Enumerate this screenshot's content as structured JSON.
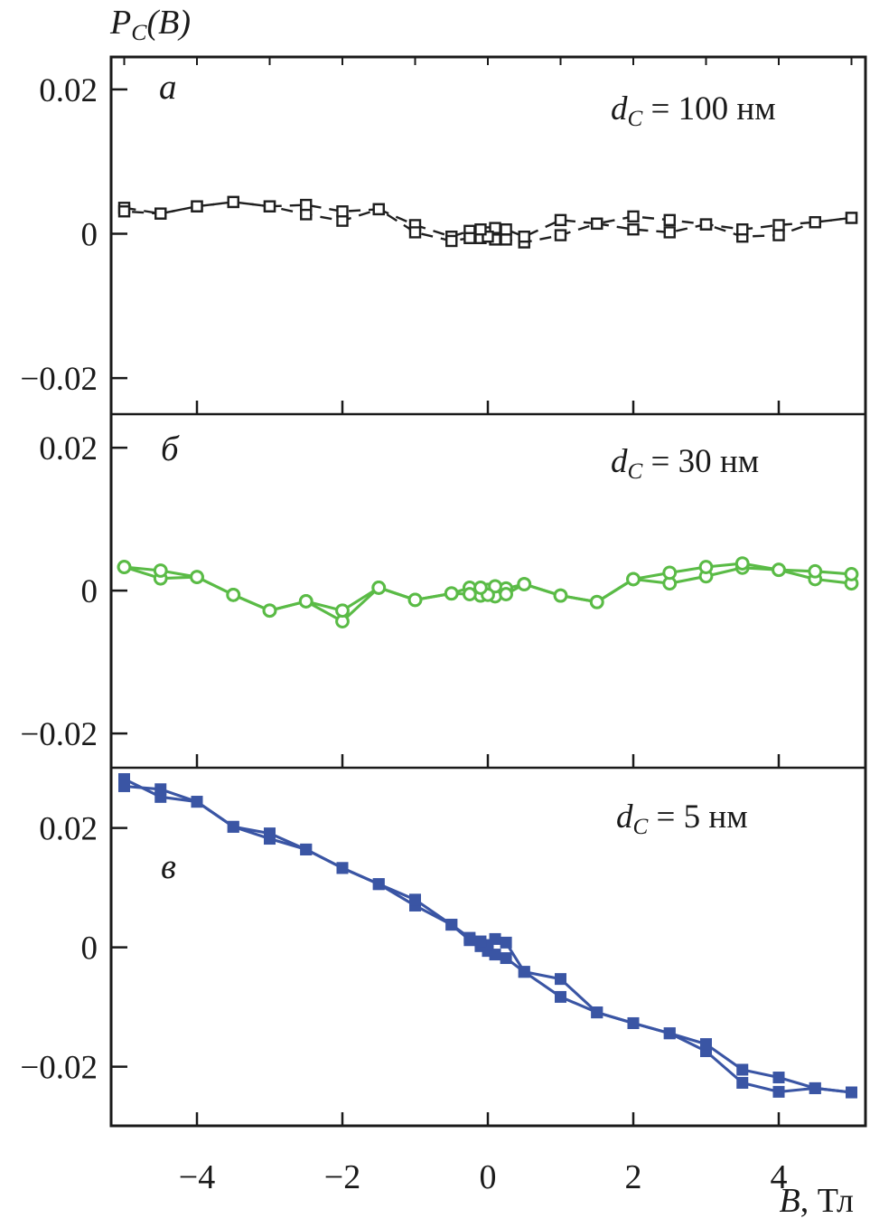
{
  "figure": {
    "title": {
      "base": "P",
      "sub": "C",
      "suffix": "(B)"
    },
    "x_axis_label": {
      "var": "B",
      "suffix": ", Тл"
    }
  },
  "chart_data": {
    "type": "line",
    "description": "Three stacked panels sharing B axis; hysteresis sweeps (forward and backward) of P_C versus magnetic field B",
    "x_axis": {
      "major_ticks": [
        -4,
        -2,
        0,
        2,
        4
      ],
      "minor_ticks": [
        -5,
        -4,
        -3,
        -2,
        -1,
        0,
        1,
        2,
        3,
        4,
        5
      ],
      "range": [
        -5.18,
        5.19
      ],
      "unit": "Тл"
    },
    "panels": [
      {
        "id": "a",
        "letter": "а",
        "annotation": {
          "base": "d",
          "sub": "C",
          "suffix": " = 100 нм"
        },
        "color": "#1f1f1f",
        "marker": "open-square",
        "line_style": "dashed",
        "y_ticks": [
          0.02,
          0,
          -0.02
        ],
        "ylim": [
          0.0245,
          -0.025
        ],
        "series": [
          {
            "name": "sweep-forward",
            "points": [
              [
                -5,
                0.0036
              ],
              [
                -4.5,
                0.0028
              ],
              [
                -4,
                0.0038
              ],
              [
                -3.5,
                0.0044
              ],
              [
                -3,
                0.0038
              ],
              [
                -2.5,
                0.0027
              ],
              [
                -2,
                0.0018
              ],
              [
                -1.5,
                0.0034
              ],
              [
                -1,
                0.0012
              ],
              [
                -0.5,
                -0.0004
              ],
              [
                -0.25,
                0.0004
              ],
              [
                -0.1,
                -0.0006
              ],
              [
                0,
                0.0002
              ],
              [
                0.1,
                0.0008
              ],
              [
                0.25,
                -0.0008
              ],
              [
                0.5,
                -0.0012
              ],
              [
                1,
                -0.0002
              ],
              [
                1.5,
                0.0014
              ],
              [
                2,
                0.0006
              ],
              [
                2.5,
                0.0002
              ],
              [
                3,
                0.0013
              ],
              [
                3.5,
                -0.0004
              ],
              [
                4,
                -0.0002
              ],
              [
                4.5,
                0.0016
              ],
              [
                5,
                0.0022
              ]
            ]
          },
          {
            "name": "sweep-backward",
            "points": [
              [
                5,
                0.0022
              ],
              [
                4.5,
                0.0016
              ],
              [
                4,
                0.0012
              ],
              [
                3.5,
                0.0006
              ],
              [
                3,
                0.0013
              ],
              [
                2.5,
                0.0019
              ],
              [
                2,
                0.0024
              ],
              [
                1.5,
                0.0014
              ],
              [
                1,
                0.0019
              ],
              [
                0.5,
                -0.0004
              ],
              [
                0.25,
                0.0006
              ],
              [
                0.1,
                -0.0008
              ],
              [
                0,
                -0.0004
              ],
              [
                -0.1,
                0.0006
              ],
              [
                -0.25,
                -0.0006
              ],
              [
                -0.5,
                -0.001
              ],
              [
                -1,
                0.0002
              ],
              [
                -1.5,
                0.0034
              ],
              [
                -2,
                0.0031
              ],
              [
                -2.5,
                0.004
              ],
              [
                -3,
                0.0038
              ],
              [
                -3.5,
                0.0044
              ],
              [
                -4,
                0.0038
              ],
              [
                -4.5,
                0.0028
              ],
              [
                -5,
                0.0031
              ]
            ]
          }
        ]
      },
      {
        "id": "b",
        "letter": "б",
        "annotation": {
          "base": "d",
          "sub": "C",
          "suffix": " = 30 нм"
        },
        "color": "#5abb46",
        "marker": "open-circle",
        "line_style": "solid",
        "y_ticks": [
          0.02,
          0,
          -0.02
        ],
        "ylim": [
          0.0247,
          -0.0248
        ],
        "series": [
          {
            "name": "sweep-forward",
            "points": [
              [
                -5,
                0.0033
              ],
              [
                -4.5,
                0.0017
              ],
              [
                -4,
                0.0019
              ],
              [
                -3.5,
                -0.0006
              ],
              [
                -3,
                -0.0028
              ],
              [
                -2.5,
                -0.0015
              ],
              [
                -2,
                -0.0043
              ],
              [
                -1.5,
                0.0004
              ],
              [
                -1,
                -0.0013
              ],
              [
                -0.5,
                -0.0004
              ],
              [
                -0.25,
                0.0004
              ],
              [
                -0.1,
                -0.0007
              ],
              [
                0,
                0.0001
              ],
              [
                0.1,
                -0.0008
              ],
              [
                0.25,
                0.0003
              ],
              [
                0.5,
                0.0009
              ],
              [
                1,
                -0.0007
              ],
              [
                1.5,
                -0.0016
              ],
              [
                2,
                0.0016
              ],
              [
                2.5,
                0.001
              ],
              [
                3,
                0.002
              ],
              [
                3.5,
                0.0032
              ],
              [
                4,
                0.0029
              ],
              [
                4.5,
                0.0016
              ],
              [
                5,
                0.001
              ]
            ]
          },
          {
            "name": "sweep-backward",
            "points": [
              [
                5,
                0.0023
              ],
              [
                4.5,
                0.0027
              ],
              [
                4,
                0.0029
              ],
              [
                3.5,
                0.0038
              ],
              [
                3,
                0.0033
              ],
              [
                2.5,
                0.0025
              ],
              [
                2,
                0.0016
              ],
              [
                1.5,
                -0.0016
              ],
              [
                1,
                -0.0007
              ],
              [
                0.5,
                0.0009
              ],
              [
                0.25,
                -0.0005
              ],
              [
                0.1,
                0.0006
              ],
              [
                0,
                -0.0006
              ],
              [
                -0.1,
                0.0004
              ],
              [
                -0.25,
                -0.0005
              ],
              [
                -0.5,
                -0.0004
              ],
              [
                -1,
                -0.0013
              ],
              [
                -1.5,
                0.0004
              ],
              [
                -2,
                -0.0028
              ],
              [
                -2.5,
                -0.0015
              ],
              [
                -3,
                -0.0028
              ],
              [
                -3.5,
                -0.0006
              ],
              [
                -4,
                0.0019
              ],
              [
                -4.5,
                0.0028
              ],
              [
                -5,
                0.0033
              ]
            ]
          }
        ]
      },
      {
        "id": "v",
        "letter": "в",
        "annotation": {
          "base": "d",
          "sub": "C",
          "suffix": " = 5 нм"
        },
        "color": "#3a55a4",
        "marker": "filled-square",
        "line_style": "solid",
        "y_ticks": [
          0.02,
          0,
          -0.02
        ],
        "ylim": [
          0.0301,
          -0.0299
        ],
        "series": [
          {
            "name": "sweep-forward",
            "points": [
              [
                -5,
                0.0282
              ],
              [
                -4.5,
                0.0252
              ],
              [
                -4,
                0.0244
              ],
              [
                -3.5,
                0.0202
              ],
              [
                -3,
                0.0182
              ],
              [
                -2.5,
                0.0164
              ],
              [
                -2,
                0.0133
              ],
              [
                -1.5,
                0.0106
              ],
              [
                -1,
                0.007
              ],
              [
                -0.5,
                0.0038
              ],
              [
                -0.25,
                0.0012
              ],
              [
                -0.1,
                0.0002
              ],
              [
                0,
                -0.0006
              ],
              [
                0.1,
                -0.0012
              ],
              [
                0.25,
                -0.0018
              ],
              [
                0.5,
                -0.0041
              ],
              [
                1,
                -0.0083
              ],
              [
                1.5,
                -0.0109
              ],
              [
                2,
                -0.0127
              ],
              [
                2.5,
                -0.0144
              ],
              [
                3,
                -0.0174
              ],
              [
                3.5,
                -0.0227
              ],
              [
                4,
                -0.0242
              ],
              [
                4.5,
                -0.0236
              ],
              [
                5,
                -0.0243
              ]
            ]
          },
          {
            "name": "sweep-backward",
            "points": [
              [
                5,
                -0.0243
              ],
              [
                4.5,
                -0.0236
              ],
              [
                4,
                -0.0218
              ],
              [
                3.5,
                -0.0205
              ],
              [
                3,
                -0.0162
              ],
              [
                2.5,
                -0.0144
              ],
              [
                2,
                -0.0127
              ],
              [
                1.5,
                -0.0109
              ],
              [
                1,
                -0.0053
              ],
              [
                0.5,
                -0.0041
              ],
              [
                0.25,
                0.0008
              ],
              [
                0.1,
                0.0014
              ],
              [
                0,
                0.0004
              ],
              [
                -0.1,
                0.001
              ],
              [
                -0.25,
                0.0016
              ],
              [
                -0.5,
                0.0038
              ],
              [
                -1,
                0.008
              ],
              [
                -1.5,
                0.0106
              ],
              [
                -2,
                0.0133
              ],
              [
                -2.5,
                0.0164
              ],
              [
                -3,
                0.0191
              ],
              [
                -3.5,
                0.0202
              ],
              [
                -4,
                0.0244
              ],
              [
                -4.5,
                0.0265
              ],
              [
                -5,
                0.027
              ]
            ]
          }
        ]
      }
    ]
  }
}
